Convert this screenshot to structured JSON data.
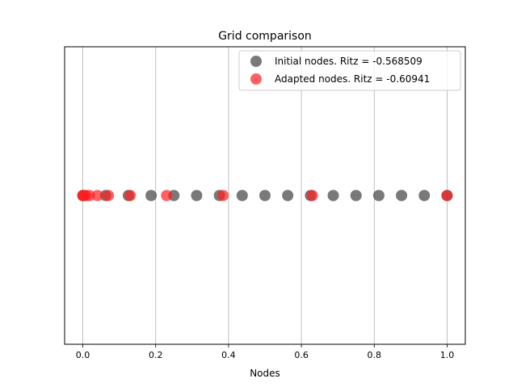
{
  "chart_data": {
    "type": "scatter",
    "title": "Grid comparison",
    "xlabel": "Nodes",
    "ylabel": "",
    "xlim": [
      -0.05,
      1.05
    ],
    "ylim": [
      -1,
      1
    ],
    "x_ticks": [
      0.0,
      0.2,
      0.4,
      0.6,
      0.8,
      1.0
    ],
    "x_tick_labels": [
      "0.0",
      "0.2",
      "0.4",
      "0.6",
      "0.8",
      "1.0"
    ],
    "grid": "vertical",
    "legend_position": "top-right",
    "series": [
      {
        "name": "Initial nodes. Ritz = -0.568509",
        "color": "#404040",
        "alpha": 0.7,
        "x": [
          0.0,
          0.0625,
          0.125,
          0.1875,
          0.25,
          0.3125,
          0.375,
          0.4375,
          0.5,
          0.5625,
          0.625,
          0.6875,
          0.75,
          0.8125,
          0.875,
          0.9375,
          1.0
        ],
        "y": [
          0,
          0,
          0,
          0,
          0,
          0,
          0,
          0,
          0,
          0,
          0,
          0,
          0,
          0,
          0,
          0,
          0
        ]
      },
      {
        "name": "Adapted nodes. Ritz = -0.60941",
        "color": "#ff2020",
        "alpha": 0.7,
        "x": [
          0.0,
          0.003,
          0.008,
          0.018,
          0.04,
          0.07,
          0.13,
          0.23,
          0.385,
          0.63,
          1.0
        ],
        "y": [
          0,
          0,
          0,
          0,
          0,
          0,
          0,
          0,
          0,
          0,
          0
        ]
      }
    ]
  }
}
